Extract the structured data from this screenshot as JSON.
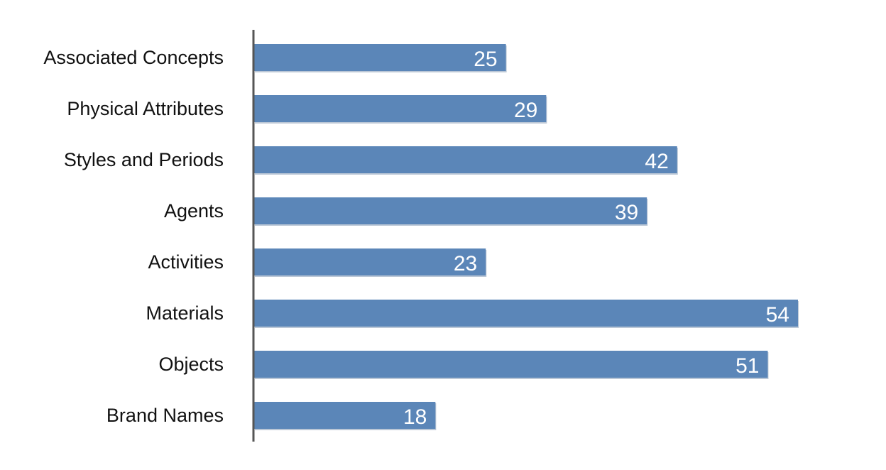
{
  "chart_data": {
    "type": "bar",
    "orientation": "horizontal",
    "categories": [
      "Associated Concepts",
      "Physical Attributes",
      "Styles and Periods",
      "Agents",
      "Activities",
      "Materials",
      "Objects",
      "Brand Names"
    ],
    "values": [
      25,
      29,
      42,
      39,
      23,
      54,
      51,
      18
    ],
    "data_labels": [
      "25",
      "29",
      "42",
      "39",
      "23",
      "54",
      "51",
      "18"
    ],
    "xlim": [
      0,
      56
    ],
    "title": "",
    "xlabel": "",
    "ylabel": "",
    "grid": false,
    "legend": "none",
    "colors": {
      "bar": "#5b86b8",
      "bar_shadow": "#3d5f8a",
      "axis": "#555555",
      "label_text": "#111111",
      "value_text": "#ffffff"
    }
  }
}
